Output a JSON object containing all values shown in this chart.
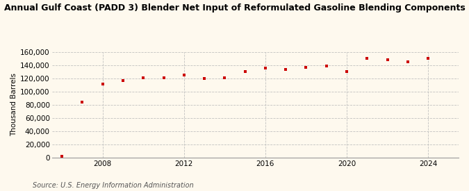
{
  "title": "Annual Gulf Coast (PADD 3) Blender Net Input of Reformulated Gasoline Blending Components",
  "ylabel": "Thousand Barrels",
  "source": "Source: U.S. Energy Information Administration",
  "background_color": "#fef9ee",
  "marker_color": "#cc0000",
  "years_actual": [
    2006,
    2007,
    2008,
    2009,
    2010,
    2011,
    2012,
    2013,
    2014,
    2015,
    2016,
    2017,
    2018,
    2019,
    2020,
    2021,
    2022,
    2023,
    2024
  ],
  "values_actual": [
    1200,
    84000,
    111000,
    116000,
    121000,
    120500,
    125000,
    120000,
    121000,
    130000,
    135000,
    133000,
    136000,
    138500,
    130000,
    150000,
    148000,
    145000,
    150000
  ],
  "ylim": [
    0,
    160000
  ],
  "yticks": [
    0,
    20000,
    40000,
    60000,
    80000,
    100000,
    120000,
    140000,
    160000
  ],
  "xticks": [
    2008,
    2012,
    2016,
    2020,
    2024
  ],
  "xlim": [
    2005.5,
    2025.5
  ],
  "title_fontsize": 9,
  "axis_fontsize": 7.5,
  "source_fontsize": 7
}
